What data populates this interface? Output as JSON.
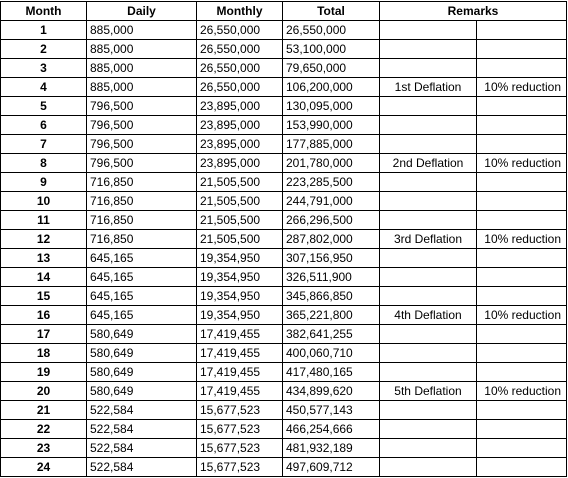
{
  "table": {
    "headers": [
      "Month",
      "Daily",
      "Monthly",
      "Total",
      "Remarks"
    ],
    "rows": [
      {
        "month": "1",
        "daily": "885,000",
        "monthly": "26,550,000",
        "total": "26,550,000",
        "remark1": "",
        "remark2": ""
      },
      {
        "month": "2",
        "daily": "885,000",
        "monthly": "26,550,000",
        "total": "53,100,000",
        "remark1": "",
        "remark2": ""
      },
      {
        "month": "3",
        "daily": "885,000",
        "monthly": "26,550,000",
        "total": "79,650,000",
        "remark1": "",
        "remark2": ""
      },
      {
        "month": "4",
        "daily": "885,000",
        "monthly": "26,550,000",
        "total": "106,200,000",
        "remark1": "1st Deflation",
        "remark2": "10% reduction"
      },
      {
        "month": "5",
        "daily": "796,500",
        "monthly": "23,895,000",
        "total": "130,095,000",
        "remark1": "",
        "remark2": ""
      },
      {
        "month": "6",
        "daily": "796,500",
        "monthly": "23,895,000",
        "total": "153,990,000",
        "remark1": "",
        "remark2": ""
      },
      {
        "month": "7",
        "daily": "796,500",
        "monthly": "23,895,000",
        "total": "177,885,000",
        "remark1": "",
        "remark2": ""
      },
      {
        "month": "8",
        "daily": "796,500",
        "monthly": "23,895,000",
        "total": "201,780,000",
        "remark1": "2nd Deflation",
        "remark2": "10% reduction"
      },
      {
        "month": "9",
        "daily": "716,850",
        "monthly": "21,505,500",
        "total": "223,285,500",
        "remark1": "",
        "remark2": ""
      },
      {
        "month": "10",
        "daily": "716,850",
        "monthly": "21,505,500",
        "total": "244,791,000",
        "remark1": "",
        "remark2": ""
      },
      {
        "month": "11",
        "daily": "716,850",
        "monthly": "21,505,500",
        "total": "266,296,500",
        "remark1": "",
        "remark2": ""
      },
      {
        "month": "12",
        "daily": "716,850",
        "monthly": "21,505,500",
        "total": "287,802,000",
        "remark1": "3rd Deflation",
        "remark2": "10% reduction"
      },
      {
        "month": "13",
        "daily": "645,165",
        "monthly": "19,354,950",
        "total": "307,156,950",
        "remark1": "",
        "remark2": ""
      },
      {
        "month": "14",
        "daily": "645,165",
        "monthly": "19,354,950",
        "total": "326,511,900",
        "remark1": "",
        "remark2": ""
      },
      {
        "month": "15",
        "daily": "645,165",
        "monthly": "19,354,950",
        "total": "345,866,850",
        "remark1": "",
        "remark2": ""
      },
      {
        "month": "16",
        "daily": "645,165",
        "monthly": "19,354,950",
        "total": "365,221,800",
        "remark1": "4th Deflation",
        "remark2": "10% reduction"
      },
      {
        "month": "17",
        "daily": "580,649",
        "monthly": "17,419,455",
        "total": "382,641,255",
        "remark1": "",
        "remark2": ""
      },
      {
        "month": "18",
        "daily": "580,649",
        "monthly": "17,419,455",
        "total": "400,060,710",
        "remark1": "",
        "remark2": ""
      },
      {
        "month": "19",
        "daily": "580,649",
        "monthly": "17,419,455",
        "total": "417,480,165",
        "remark1": "",
        "remark2": ""
      },
      {
        "month": "20",
        "daily": "580,649",
        "monthly": "17,419,455",
        "total": "434,899,620",
        "remark1": "5th Deflation",
        "remark2": "10% reduction"
      },
      {
        "month": "21",
        "daily": "522,584",
        "monthly": "15,677,523",
        "total": "450,577,143",
        "remark1": "",
        "remark2": ""
      },
      {
        "month": "22",
        "daily": "522,584",
        "monthly": "15,677,523",
        "total": "466,254,666",
        "remark1": "",
        "remark2": ""
      },
      {
        "month": "23",
        "daily": "522,584",
        "monthly": "15,677,523",
        "total": "481,932,189",
        "remark1": "",
        "remark2": ""
      },
      {
        "month": "24",
        "daily": "522,584",
        "monthly": "15,677,523",
        "total": "497,609,712",
        "remark1": "",
        "remark2": ""
      }
    ]
  }
}
